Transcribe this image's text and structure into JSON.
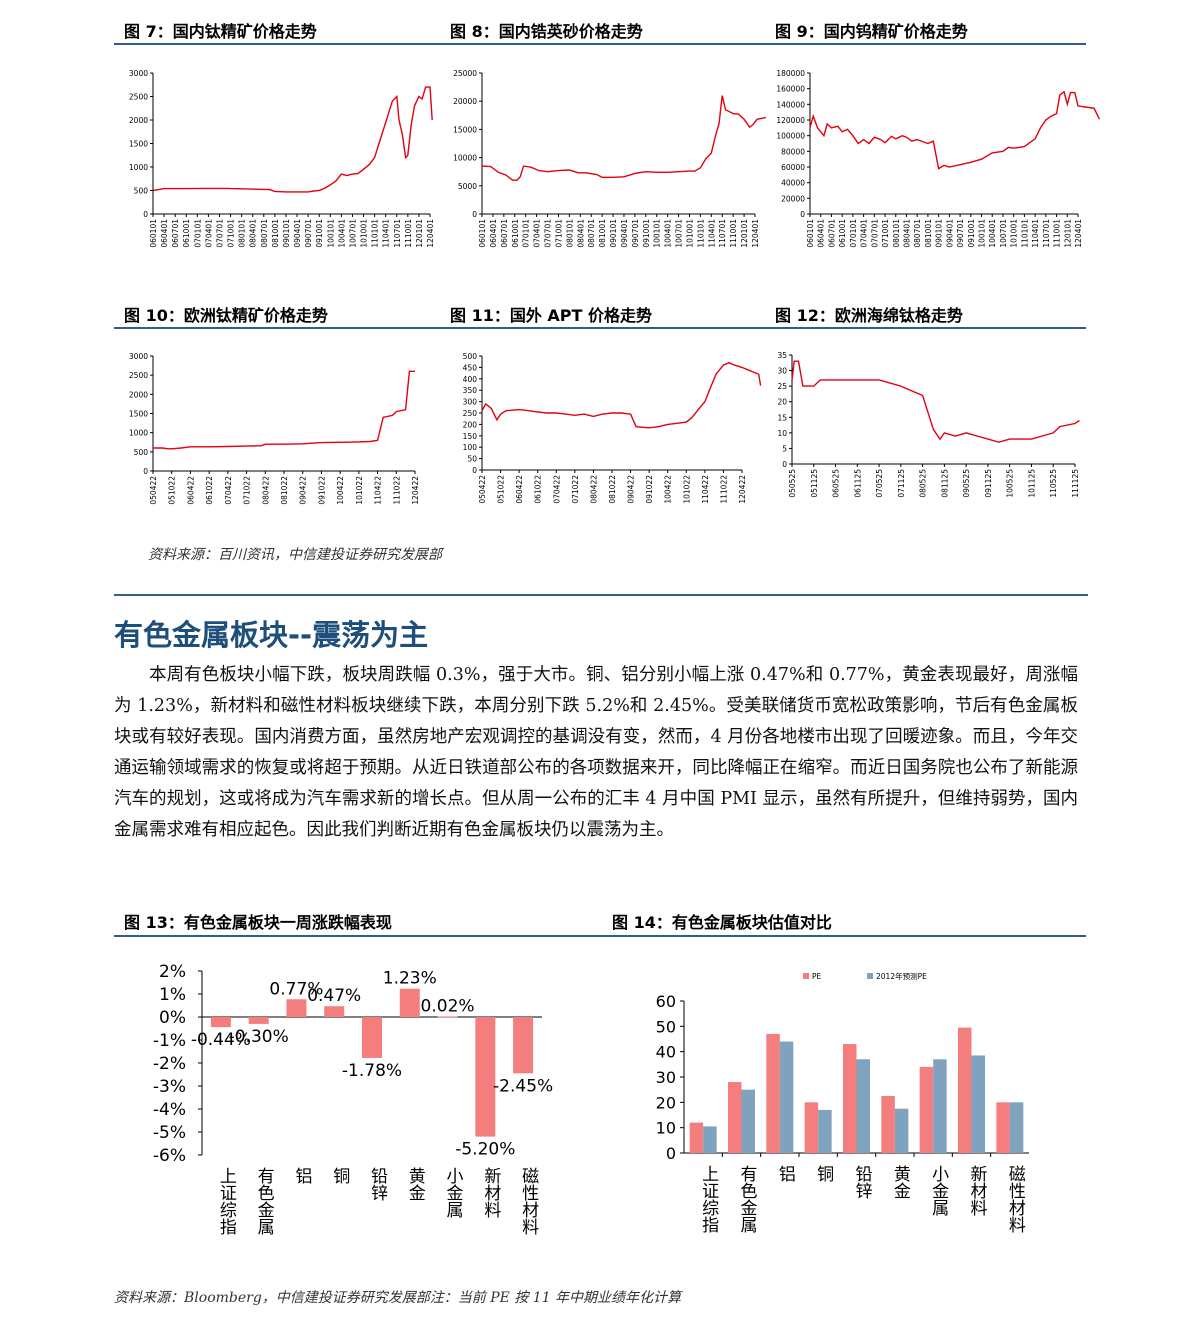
{
  "colors": {
    "rule": "#2f5e8a",
    "heading": "#1d4f7a",
    "line": "#e3000f",
    "pe": "#f47d7d",
    "pe2012": "#7fa2bf",
    "bar13": "#f47d7d"
  },
  "section_heading": "有色金属板块--震荡为主",
  "body_paragraph": "本周有色板块小幅下跌，板块周跌幅 0.3%，强于大市。铜、铝分别小幅上涨 0.47%和 0.77%，黄金表现最好，周涨幅为 1.23%，新材料和磁性材料板块继续下跌，本周分别下跌 5.2%和 2.45%。受美联储货币宽松政策影响，节后有色金属板块或有较好表现。国内消费方面，虽然房地产宏观调控的基调没有变，然而，4 月份各地楼市出现了回暖迹象。而且，今年交通运输领域需求的恢复或将超于预期。从近日铁道部公布的各项数据来开，同比降幅正在缩窄。而近日国务院也公布了新能源汽车的规划，这或将成为汽车需求新的增长点。但从周一公布的汇丰 4 月中国 PMI 显示，虽然有所提升，但维持弱势，国内金属需求难有相应起色。因此我们判断近期有色金属板块仍以震荡为主。",
  "source_top": "资料来源：百川资讯，中信建投证券研究发展部",
  "source_bottom": "资料来源：Bloomberg，中信建投证券研究发展部注：当前 PE 按 11 年中期业绩年化计算",
  "figures": {
    "fig7": "图 7：国内钛精矿价格走势",
    "fig8": "图 8：国内锆英砂价格走势",
    "fig9": "图 9：国内钨精矿价格走势",
    "fig10": "图 10：欧洲钛精矿价格走势",
    "fig11": "图 11：国外 APT 价格走势",
    "fig12": "图 12：欧洲海绵钛格走势",
    "fig13": "图 13：有色金属板块一周涨跌幅表现",
    "fig14": "图 14：有色金属板块估值对比"
  },
  "chart_data": [
    {
      "id": "fig7",
      "type": "line",
      "ylim": [
        0,
        3000
      ],
      "yticks": [
        0,
        500,
        1000,
        1500,
        2000,
        2500,
        3000
      ],
      "x_labels": [
        "060101",
        "060401",
        "060701",
        "061001",
        "070101",
        "070401",
        "070701",
        "071001",
        "080101",
        "080401",
        "080701",
        "081001",
        "090101",
        "090401",
        "090701",
        "091001",
        "100101",
        "100401",
        "100701",
        "101001",
        "110101",
        "110401",
        "110701",
        "111001",
        "120101",
        "120401"
      ],
      "points": [
        [
          0,
          500
        ],
        [
          0.5,
          520
        ],
        [
          1,
          540
        ],
        [
          3,
          540
        ],
        [
          5,
          545
        ],
        [
          6.8,
          545
        ],
        [
          7,
          540
        ],
        [
          9,
          530
        ],
        [
          10.5,
          520
        ],
        [
          11,
          480
        ],
        [
          12,
          470
        ],
        [
          13,
          470
        ],
        [
          14,
          470
        ],
        [
          14.5,
          490
        ],
        [
          15,
          500
        ],
        [
          15.5,
          550
        ],
        [
          16,
          620
        ],
        [
          16.5,
          700
        ],
        [
          17,
          850
        ],
        [
          17.5,
          820
        ],
        [
          18,
          850
        ],
        [
          18.5,
          860
        ],
        [
          19,
          950
        ],
        [
          19.5,
          1050
        ],
        [
          20,
          1200
        ],
        [
          20.4,
          1500
        ],
        [
          20.8,
          1800
        ],
        [
          21.2,
          2100
        ],
        [
          21.6,
          2400
        ],
        [
          22,
          2500
        ],
        [
          22.2,
          2000
        ],
        [
          22.5,
          1700
        ],
        [
          22.8,
          1200
        ],
        [
          23,
          1250
        ],
        [
          23.3,
          1900
        ],
        [
          23.6,
          2300
        ],
        [
          24,
          2500
        ],
        [
          24.3,
          2450
        ],
        [
          24.6,
          2700
        ],
        [
          25,
          2700
        ],
        [
          25.2,
          2000
        ]
      ]
    },
    {
      "id": "fig8",
      "type": "line",
      "ylim": [
        0,
        25000
      ],
      "yticks": [
        0,
        5000,
        10000,
        15000,
        20000,
        25000
      ],
      "x_labels": [
        "060101",
        "060401",
        "060701",
        "061001",
        "070101",
        "070401",
        "070701",
        "071001",
        "080101",
        "080401",
        "080701",
        "081001",
        "090101",
        "090401",
        "090701",
        "091001",
        "100101",
        "100401",
        "100701",
        "101001",
        "110101",
        "110401",
        "110701",
        "111001",
        "120101",
        "120401"
      ],
      "points": [
        [
          0,
          8500
        ],
        [
          0.8,
          8400
        ],
        [
          1.5,
          7400
        ],
        [
          2.2,
          6900
        ],
        [
          2.8,
          6000
        ],
        [
          3.2,
          6000
        ],
        [
          3.5,
          6600
        ],
        [
          3.8,
          8500
        ],
        [
          4.5,
          8300
        ],
        [
          5.2,
          7700
        ],
        [
          6,
          7500
        ],
        [
          7,
          7700
        ],
        [
          8,
          7800
        ],
        [
          8.8,
          7300
        ],
        [
          9.5,
          7300
        ],
        [
          10.5,
          7000
        ],
        [
          11,
          6500
        ],
        [
          12,
          6500
        ],
        [
          13,
          6600
        ],
        [
          14,
          7200
        ],
        [
          15,
          7500
        ],
        [
          16,
          7400
        ],
        [
          17,
          7400
        ],
        [
          18,
          7500
        ],
        [
          19,
          7600
        ],
        [
          19.5,
          7600
        ],
        [
          20,
          8200
        ],
        [
          20.5,
          9800
        ],
        [
          21,
          10800
        ],
        [
          21.4,
          14000
        ],
        [
          21.7,
          16000
        ],
        [
          22,
          21000
        ],
        [
          22.3,
          18500
        ],
        [
          23,
          17800
        ],
        [
          23.5,
          17700
        ],
        [
          24,
          16800
        ],
        [
          24.5,
          15400
        ],
        [
          24.8,
          15800
        ],
        [
          25.2,
          16800
        ],
        [
          26,
          17100
        ]
      ]
    },
    {
      "id": "fig9",
      "type": "line",
      "ylim": [
        0,
        180000
      ],
      "yticks": [
        0,
        20000,
        40000,
        60000,
        80000,
        100000,
        120000,
        140000,
        160000,
        180000
      ],
      "x_labels": [
        "060101",
        "060401",
        "060701",
        "061001",
        "070101",
        "070401",
        "070701",
        "071001",
        "080101",
        "080401",
        "080701",
        "081001",
        "090101",
        "090401",
        "090701",
        "091001",
        "100101",
        "100401",
        "100701",
        "101001",
        "110101",
        "110401",
        "110701",
        "111001",
        "120101",
        "120401"
      ],
      "points": [
        [
          0,
          110000
        ],
        [
          0.3,
          125000
        ],
        [
          0.7,
          110000
        ],
        [
          1.3,
          100000
        ],
        [
          1.6,
          115000
        ],
        [
          2,
          110000
        ],
        [
          2.6,
          112000
        ],
        [
          3,
          105000
        ],
        [
          3.5,
          108000
        ],
        [
          4,
          100000
        ],
        [
          4.5,
          90000
        ],
        [
          5,
          95000
        ],
        [
          5.5,
          90000
        ],
        [
          6,
          98000
        ],
        [
          6.6,
          95000
        ],
        [
          7,
          91000
        ],
        [
          7.6,
          99000
        ],
        [
          8,
          96000
        ],
        [
          8.6,
          100000
        ],
        [
          9,
          98000
        ],
        [
          9.5,
          93000
        ],
        [
          10,
          95000
        ],
        [
          11,
          90000
        ],
        [
          11.5,
          93000
        ],
        [
          12,
          58000
        ],
        [
          12.5,
          62000
        ],
        [
          13,
          60000
        ],
        [
          14,
          63000
        ],
        [
          15,
          66000
        ],
        [
          16,
          70000
        ],
        [
          17,
          78000
        ],
        [
          18,
          80000
        ],
        [
          18.5,
          85000
        ],
        [
          19,
          84000
        ],
        [
          20,
          86000
        ],
        [
          21,
          96000
        ],
        [
          21.5,
          110000
        ],
        [
          22,
          120000
        ],
        [
          22.5,
          125000
        ],
        [
          23,
          128000
        ],
        [
          23.3,
          152000
        ],
        [
          23.7,
          156000
        ],
        [
          24,
          140000
        ],
        [
          24.3,
          155000
        ],
        [
          24.7,
          155000
        ],
        [
          25,
          138000
        ],
        [
          26,
          136000
        ],
        [
          26.5,
          135000
        ],
        [
          27,
          121000
        ]
      ]
    },
    {
      "id": "fig10",
      "type": "line",
      "ylim": [
        0,
        3000
      ],
      "yticks": [
        0,
        500,
        1000,
        1500,
        2000,
        2500,
        3000
      ],
      "x_labels": [
        "050422",
        "051022",
        "060422",
        "061022",
        "070422",
        "071022",
        "080422",
        "081022",
        "090422",
        "091022",
        "100422",
        "101022",
        "110422",
        "111022",
        "120422"
      ],
      "points": [
        [
          0,
          600
        ],
        [
          0.5,
          600
        ],
        [
          0.8,
          580
        ],
        [
          1,
          580
        ],
        [
          1.5,
          600
        ],
        [
          2,
          630
        ],
        [
          3,
          630
        ],
        [
          4,
          640
        ],
        [
          5,
          650
        ],
        [
          5.8,
          660
        ],
        [
          6,
          700
        ],
        [
          7,
          700
        ],
        [
          8,
          710
        ],
        [
          9,
          740
        ],
        [
          10,
          750
        ],
        [
          11,
          760
        ],
        [
          11.6,
          770
        ],
        [
          12,
          800
        ],
        [
          12.3,
          1400
        ],
        [
          12.8,
          1450
        ],
        [
          13,
          1550
        ],
        [
          13.5,
          1600
        ],
        [
          13.7,
          2600
        ],
        [
          14,
          2600
        ]
      ]
    },
    {
      "id": "fig11",
      "type": "line",
      "ylim": [
        0,
        500
      ],
      "yticks": [
        0,
        50,
        100,
        150,
        200,
        250,
        300,
        350,
        400,
        450,
        500
      ],
      "x_labels": [
        "050422",
        "051022",
        "060422",
        "061022",
        "070422",
        "071022",
        "080422",
        "081022",
        "090422",
        "091022",
        "100422",
        "101022",
        "110422",
        "111022",
        "120422"
      ],
      "points": [
        [
          0,
          260
        ],
        [
          0.2,
          290
        ],
        [
          0.5,
          270
        ],
        [
          0.8,
          220
        ],
        [
          1,
          245
        ],
        [
          1.3,
          260
        ],
        [
          2,
          265
        ],
        [
          2.5,
          260
        ],
        [
          3,
          255
        ],
        [
          3.5,
          250
        ],
        [
          4,
          250
        ],
        [
          4.5,
          245
        ],
        [
          5,
          240
        ],
        [
          5.5,
          245
        ],
        [
          6,
          235
        ],
        [
          6.5,
          245
        ],
        [
          7,
          250
        ],
        [
          7.5,
          250
        ],
        [
          8,
          245
        ],
        [
          8.3,
          190
        ],
        [
          9,
          185
        ],
        [
          9.5,
          190
        ],
        [
          10,
          200
        ],
        [
          10.5,
          205
        ],
        [
          11,
          210
        ],
        [
          11.3,
          230
        ],
        [
          11.6,
          260
        ],
        [
          12,
          300
        ],
        [
          12.3,
          360
        ],
        [
          12.6,
          420
        ],
        [
          13,
          460
        ],
        [
          13.3,
          470
        ],
        [
          13.6,
          460
        ],
        [
          14,
          450
        ],
        [
          14.3,
          440
        ],
        [
          14.6,
          430
        ],
        [
          14.9,
          420
        ],
        [
          15,
          370
        ]
      ]
    },
    {
      "id": "fig12",
      "type": "line",
      "ylim": [
        0,
        35
      ],
      "yticks": [
        0,
        5,
        10,
        15,
        20,
        25,
        30,
        35
      ],
      "x_labels": [
        "050525",
        "051125",
        "060525",
        "061125",
        "070525",
        "071125",
        "080525",
        "081125",
        "090525",
        "091125",
        "100525",
        "101125",
        "110525",
        "111125"
      ],
      "points": [
        [
          0,
          27
        ],
        [
          0.1,
          33
        ],
        [
          0.3,
          33
        ],
        [
          0.5,
          25
        ],
        [
          1,
          25
        ],
        [
          1.3,
          27
        ],
        [
          2,
          27
        ],
        [
          3,
          27
        ],
        [
          4,
          27
        ],
        [
          5,
          25
        ],
        [
          6,
          22
        ],
        [
          6.5,
          11
        ],
        [
          6.8,
          8
        ],
        [
          7,
          10
        ],
        [
          7.5,
          9
        ],
        [
          8,
          10
        ],
        [
          8.5,
          9
        ],
        [
          9,
          8
        ],
        [
          9.5,
          7
        ],
        [
          10,
          8
        ],
        [
          10.5,
          8
        ],
        [
          11,
          8
        ],
        [
          11.5,
          9
        ],
        [
          12,
          10
        ],
        [
          12.3,
          12
        ],
        [
          13,
          13
        ],
        [
          13.2,
          14
        ]
      ]
    },
    {
      "id": "fig13",
      "type": "bar",
      "ylim": [
        -6,
        2
      ],
      "yticks": [
        2,
        1,
        0,
        -1,
        -2,
        -3,
        -4,
        -5,
        -6
      ],
      "ytick_labels": [
        "2%",
        "1%",
        "0%",
        "-1%",
        "-2%",
        "-3%",
        "-4%",
        "-5%",
        "-6%"
      ],
      "categories": [
        "上证综指",
        "有色金属",
        "铝",
        "铜",
        "铅锌",
        "黄金",
        "小金属",
        "新材料",
        "磁性材料"
      ],
      "values": [
        -0.44,
        -0.3,
        0.77,
        0.47,
        -1.78,
        1.23,
        0.02,
        -5.2,
        -2.45
      ],
      "data_labels": [
        "-0.44%",
        "-0.30%",
        "0.77%",
        "0.47%",
        "-1.78%",
        "1.23%",
        "0.02%",
        "-5.20%",
        "-2.45%"
      ]
    },
    {
      "id": "fig14",
      "type": "bar",
      "ylim": [
        0,
        60
      ],
      "yticks": [
        0,
        10,
        20,
        30,
        40,
        50,
        60
      ],
      "categories": [
        "上证综指",
        "有色金属",
        "铝",
        "铜",
        "铅锌",
        "黄金",
        "小金属",
        "新材料",
        "磁性材料"
      ],
      "series": [
        {
          "name": "PE",
          "values": [
            12.0,
            28.0,
            47.0,
            20.0,
            43.0,
            22.5,
            34.0,
            49.5,
            20.0
          ]
        },
        {
          "name": "2012年预测PE",
          "values": [
            10.5,
            25.0,
            44.0,
            17.0,
            37.0,
            17.5,
            37.0,
            38.5,
            20.0
          ]
        }
      ],
      "legend": "top"
    }
  ]
}
